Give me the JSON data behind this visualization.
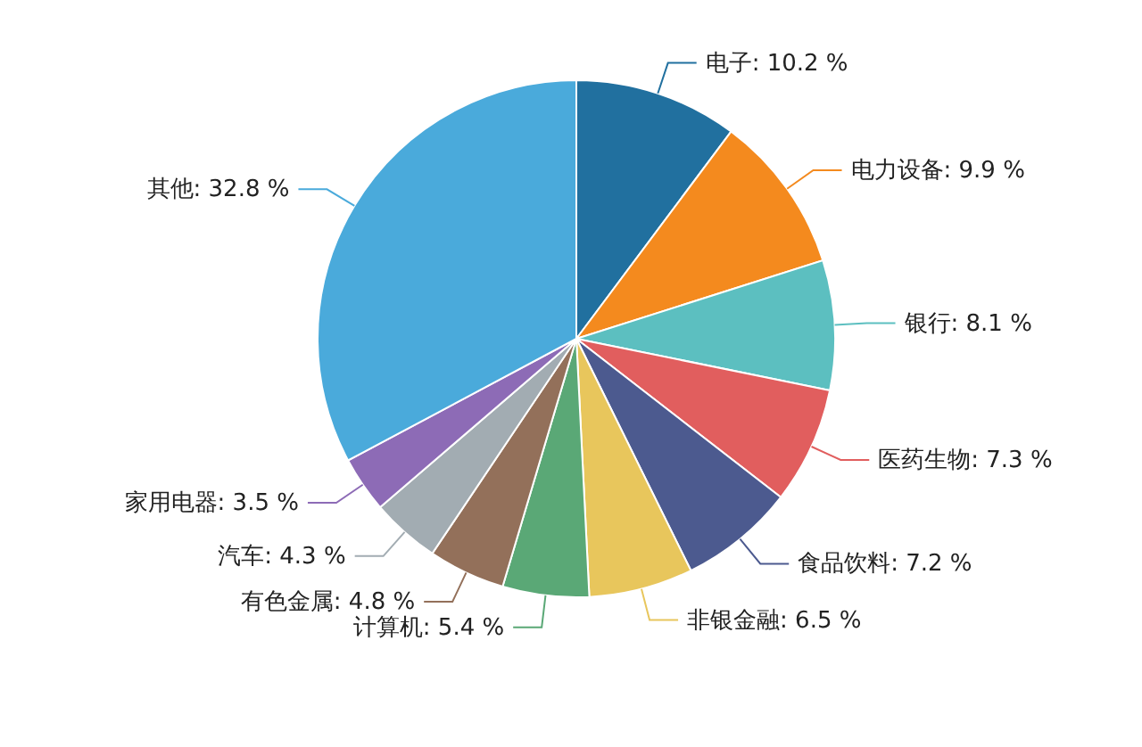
{
  "chart_data": {
    "type": "pie",
    "categories": [
      "电子",
      "电力设备",
      "银行",
      "医药生物",
      "食品饮料",
      "非银金融",
      "计算机",
      "有色金属",
      "汽车",
      "家用电器",
      "其他"
    ],
    "values": [
      10.2,
      9.9,
      8.1,
      7.3,
      7.2,
      6.5,
      5.4,
      4.8,
      4.3,
      3.5,
      32.8
    ],
    "value_labels": [
      "10.2 %",
      "9.9 %",
      "8.1 %",
      "7.3 %",
      "7.2 %",
      "6.5 %",
      "5.4 %",
      "4.8 %",
      "4.3 %",
      "3.5 %",
      "32.8 %"
    ],
    "colors": [
      "#21709f",
      "#f48a1e",
      "#5cbfc0",
      "#e15e5e",
      "#4c5a8f",
      "#e8c65c",
      "#5aa876",
      "#93705a",
      "#a2acb2",
      "#8d6bb6",
      "#4aaadb"
    ],
    "legend": false
  }
}
